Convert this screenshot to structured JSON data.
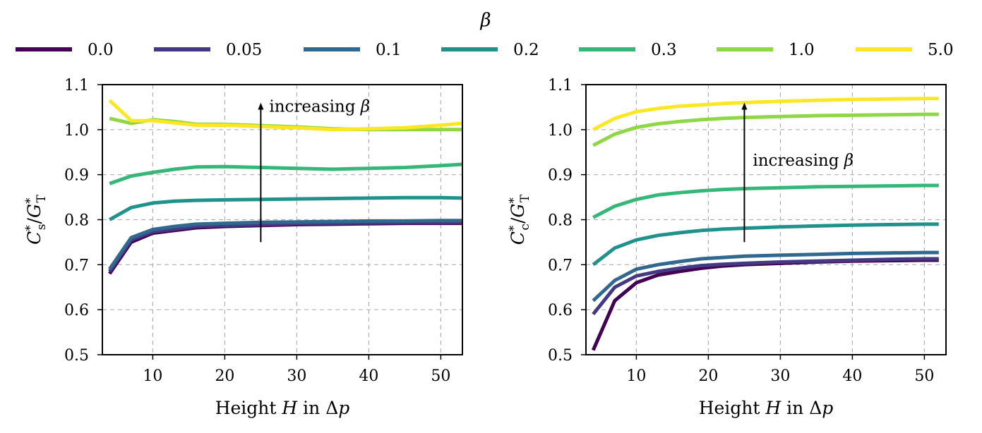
{
  "legend": {
    "title": "β",
    "entries": [
      {
        "label": "0.0",
        "color": "#440154"
      },
      {
        "label": "0.05",
        "color": "#443a83"
      },
      {
        "label": "0.1",
        "color": "#31688e"
      },
      {
        "label": "0.2",
        "color": "#21918c"
      },
      {
        "label": "0.3",
        "color": "#35b779"
      },
      {
        "label": "1.0",
        "color": "#8fd744"
      },
      {
        "label": "5.0",
        "color": "#fde725"
      }
    ]
  },
  "chart_data": [
    {
      "type": "line",
      "title": "",
      "xlabel": "Height H in Δp",
      "xlabel_parts": [
        "Height ",
        "H",
        " in Δ",
        "p"
      ],
      "ylabel": "C*s / G*T",
      "ylabel_parts": [
        "C",
        "*",
        "s",
        "/",
        "G",
        "*",
        "T"
      ],
      "xlim": [
        3,
        53
      ],
      "ylim": [
        0.5,
        1.1
      ],
      "xticks": [
        10,
        20,
        30,
        40,
        50
      ],
      "yticks": [
        0.5,
        0.6,
        0.7,
        0.8,
        0.9,
        1.0,
        1.1
      ],
      "grid": true,
      "annotation": {
        "text": "increasing β",
        "text_parts": [
          "increasing ",
          "β"
        ],
        "arrow_x": 25,
        "arrow_from": 0.75,
        "arrow_to": 1.06
      },
      "x": [
        4,
        7,
        10,
        13,
        16,
        20,
        25,
        30,
        35,
        40,
        45,
        50,
        53
      ],
      "series": [
        {
          "name": "0.0",
          "values": [
            0.68,
            0.75,
            0.77,
            0.776,
            0.782,
            0.785,
            0.787,
            0.789,
            0.79,
            0.791,
            0.792,
            0.792,
            0.792
          ]
        },
        {
          "name": "0.05",
          "values": [
            0.685,
            0.755,
            0.773,
            0.779,
            0.785,
            0.787,
            0.789,
            0.791,
            0.792,
            0.793,
            0.794,
            0.794,
            0.794
          ]
        },
        {
          "name": "0.1",
          "values": [
            0.69,
            0.76,
            0.778,
            0.785,
            0.79,
            0.792,
            0.794,
            0.795,
            0.796,
            0.797,
            0.797,
            0.798,
            0.798
          ]
        },
        {
          "name": "0.2",
          "values": [
            0.8,
            0.827,
            0.837,
            0.841,
            0.843,
            0.844,
            0.845,
            0.846,
            0.847,
            0.848,
            0.849,
            0.849,
            0.848
          ]
        },
        {
          "name": "0.3",
          "values": [
            0.88,
            0.897,
            0.905,
            0.912,
            0.917,
            0.918,
            0.916,
            0.914,
            0.912,
            0.914,
            0.916,
            0.92,
            0.923
          ]
        },
        {
          "name": "1.0",
          "values": [
            1.025,
            1.014,
            1.022,
            1.018,
            1.012,
            1.012,
            1.009,
            1.006,
            1.002,
            1.0,
            1.0,
            1.0,
            1.0
          ]
        },
        {
          "name": "5.0",
          "values": [
            1.065,
            1.02,
            1.02,
            1.015,
            1.01,
            1.01,
            1.007,
            1.004,
            1.0,
            1.002,
            1.004,
            1.01,
            1.014
          ]
        }
      ]
    },
    {
      "type": "line",
      "title": "",
      "xlabel": "Height H in Δp",
      "xlabel_parts": [
        "Height ",
        "H",
        " in Δ",
        "p"
      ],
      "ylabel": "C*c / G*T",
      "ylabel_parts": [
        "C",
        "*",
        "c",
        "/",
        "G",
        "*",
        "T"
      ],
      "xlim": [
        3,
        53
      ],
      "ylim": [
        0.5,
        1.1
      ],
      "xticks": [
        10,
        20,
        30,
        40,
        50
      ],
      "yticks": [
        0.5,
        0.6,
        0.7,
        0.8,
        0.9,
        1.0,
        1.1
      ],
      "grid": true,
      "annotation": {
        "text": "increasing β",
        "text_parts": [
          "increasing ",
          "β"
        ],
        "arrow_x": 25,
        "arrow_from": 0.75,
        "arrow_to": 1.06
      },
      "x": [
        4,
        7,
        10,
        13,
        16,
        19,
        22,
        25,
        30,
        35,
        40,
        45,
        50,
        52
      ],
      "series": [
        {
          "name": "0.0",
          "values": [
            0.51,
            0.62,
            0.66,
            0.677,
            0.685,
            0.692,
            0.697,
            0.7,
            0.703,
            0.706,
            0.708,
            0.709,
            0.71,
            0.71
          ]
        },
        {
          "name": "0.05",
          "values": [
            0.59,
            0.65,
            0.675,
            0.685,
            0.692,
            0.698,
            0.701,
            0.703,
            0.706,
            0.708,
            0.71,
            0.712,
            0.713,
            0.713
          ]
        },
        {
          "name": "0.1",
          "values": [
            0.62,
            0.665,
            0.69,
            0.7,
            0.707,
            0.713,
            0.716,
            0.719,
            0.721,
            0.723,
            0.725,
            0.726,
            0.727,
            0.727
          ]
        },
        {
          "name": "0.2",
          "values": [
            0.7,
            0.737,
            0.755,
            0.765,
            0.771,
            0.776,
            0.779,
            0.781,
            0.784,
            0.786,
            0.788,
            0.789,
            0.79,
            0.79
          ]
        },
        {
          "name": "0.3",
          "values": [
            0.805,
            0.83,
            0.845,
            0.855,
            0.86,
            0.864,
            0.867,
            0.869,
            0.871,
            0.873,
            0.874,
            0.875,
            0.876,
            0.876
          ]
        },
        {
          "name": "1.0",
          "values": [
            0.965,
            0.99,
            1.005,
            1.013,
            1.018,
            1.022,
            1.025,
            1.027,
            1.029,
            1.031,
            1.032,
            1.033,
            1.034,
            1.034
          ]
        },
        {
          "name": "5.0",
          "values": [
            1.0,
            1.025,
            1.04,
            1.047,
            1.052,
            1.055,
            1.058,
            1.06,
            1.063,
            1.065,
            1.067,
            1.068,
            1.069,
            1.069
          ]
        }
      ]
    }
  ]
}
